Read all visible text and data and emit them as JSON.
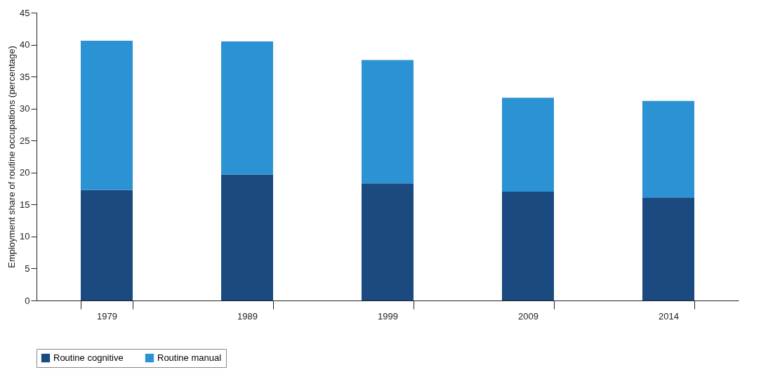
{
  "chart_data": {
    "type": "bar",
    "stacked": true,
    "ylabel": "Employment share of routine occupations (percentage)",
    "categories": [
      "1979",
      "1989",
      "1999",
      "2009",
      "2014"
    ],
    "series": [
      {
        "name": "Routine cognitive",
        "color": "#1a4a80",
        "values": [
          17.3,
          19.7,
          18.3,
          17.0,
          16.1
        ]
      },
      {
        "name": "Routine manual",
        "color": "#2b93d4",
        "values": [
          23.3,
          20.8,
          19.3,
          14.7,
          15.1
        ]
      }
    ],
    "ylim": [
      0,
      45
    ],
    "yticks": [
      0,
      5,
      10,
      15,
      20,
      25,
      30,
      35,
      40,
      45
    ],
    "grid": false,
    "legend": "bottom"
  }
}
